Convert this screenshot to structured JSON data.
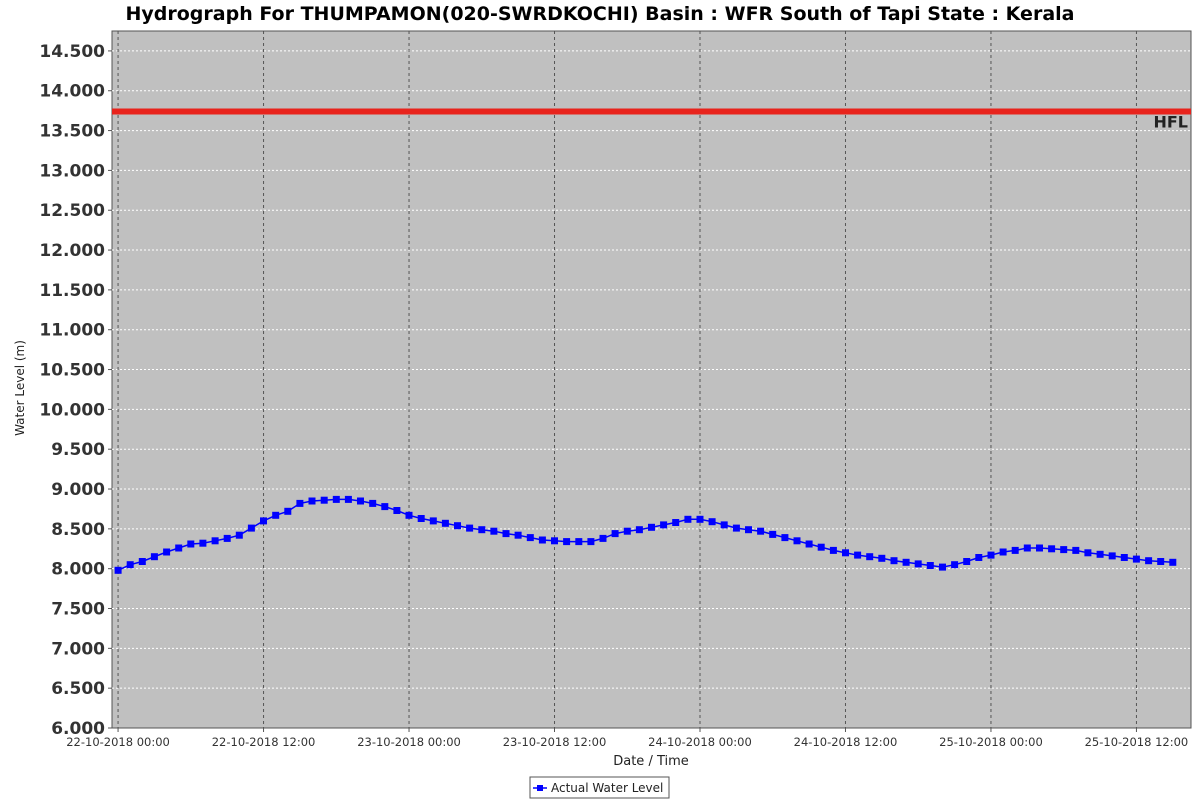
{
  "chart_data": {
    "type": "line",
    "title": "Hydrograph For THUMPAMON(020-SWRDKOCHI) Basin : WFR South of Tapi State : Kerala",
    "xlabel": "Date / Time",
    "ylabel": "Water Level (m)",
    "ylim": [
      6.0,
      14.75
    ],
    "y_ticks": [
      "6.000",
      "6.500",
      "7.000",
      "7.500",
      "8.000",
      "8.500",
      "9.000",
      "9.500",
      "10.000",
      "10.500",
      "11.000",
      "11.500",
      "12.000",
      "12.500",
      "13.000",
      "13.500",
      "14.000",
      "14.500"
    ],
    "x_ticks": [
      "22-10-2018 00:00",
      "22-10-2018 12:00",
      "23-10-2018 00:00",
      "23-10-2018 12:00",
      "24-10-2018 00:00",
      "24-10-2018 12:00",
      "25-10-2018 00:00",
      "25-10-2018 12:00"
    ],
    "x_unit": "hours",
    "xlim": [
      -0.5,
      88.5
    ],
    "grid": true,
    "legend_position": "bottom",
    "hfl": {
      "label": "HFL",
      "value": 13.74,
      "color": "#e8231c"
    },
    "series": [
      {
        "name": "Actual Water Level",
        "color": "#0000ff",
        "marker": "square",
        "x": [
          0,
          1,
          2,
          3,
          4,
          5,
          6,
          7,
          8,
          9,
          10,
          11,
          12,
          13,
          14,
          15,
          16,
          17,
          18,
          19,
          20,
          21,
          22,
          23,
          24,
          25,
          26,
          27,
          28,
          29,
          30,
          31,
          32,
          33,
          34,
          35,
          36,
          37,
          38,
          39,
          40,
          41,
          42,
          43,
          44,
          45,
          46,
          47,
          48,
          49,
          50,
          51,
          52,
          53,
          54,
          55,
          56,
          57,
          58,
          59,
          60,
          61,
          62,
          63,
          64,
          65,
          66,
          67,
          68,
          69,
          70,
          71,
          72,
          73,
          74,
          75,
          76,
          77,
          78,
          79,
          80,
          81,
          82,
          83,
          84,
          85,
          86,
          87
        ],
        "values": [
          7.98,
          8.05,
          8.09,
          8.15,
          8.21,
          8.26,
          8.31,
          8.32,
          8.35,
          8.38,
          8.42,
          8.51,
          8.6,
          8.67,
          8.72,
          8.82,
          8.85,
          8.86,
          8.87,
          8.87,
          8.85,
          8.82,
          8.78,
          8.73,
          8.67,
          8.63,
          8.6,
          8.57,
          8.54,
          8.51,
          8.49,
          8.47,
          8.44,
          8.42,
          8.39,
          8.36,
          8.35,
          8.34,
          8.34,
          8.34,
          8.38,
          8.44,
          8.47,
          8.49,
          8.52,
          8.55,
          8.58,
          8.62,
          8.62,
          8.59,
          8.55,
          8.51,
          8.49,
          8.47,
          8.43,
          8.39,
          8.35,
          8.31,
          8.27,
          8.23,
          8.2,
          8.17,
          8.15,
          8.13,
          8.1,
          8.08,
          8.06,
          8.04,
          8.02,
          8.05,
          8.09,
          8.14,
          8.17,
          8.21,
          8.23,
          8.26,
          8.26,
          8.25,
          8.24,
          8.23,
          8.2,
          8.18,
          8.16,
          8.14,
          8.12,
          8.1,
          8.09,
          8.08
        ]
      }
    ]
  }
}
